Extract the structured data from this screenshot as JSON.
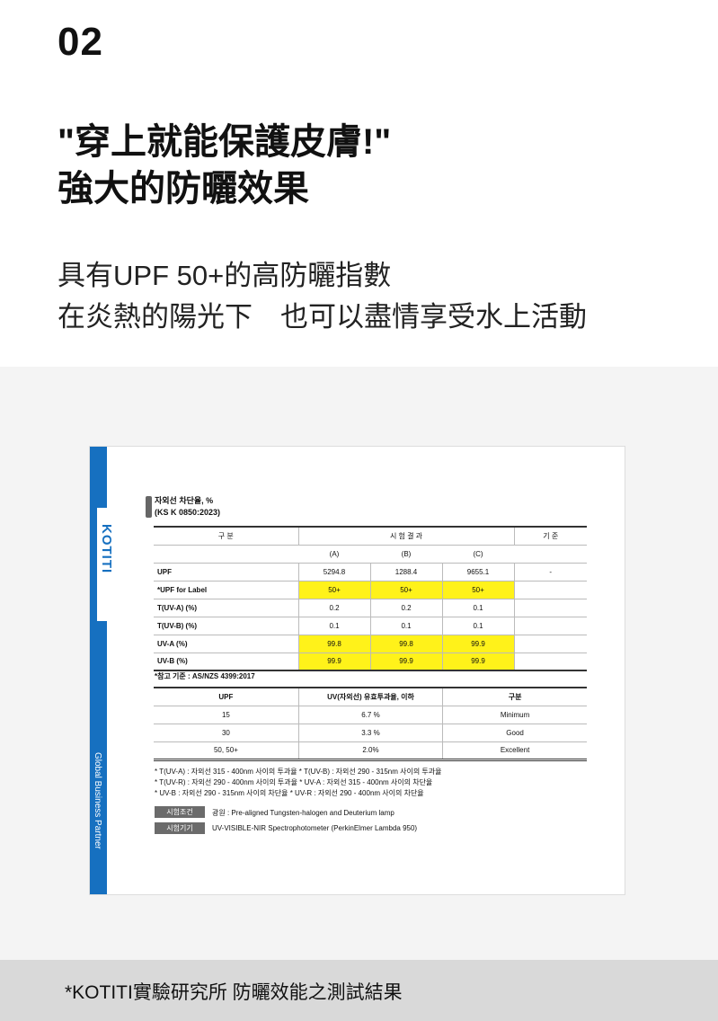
{
  "number": "02",
  "headline": [
    "\"穿上就能保護皮膚!\"",
    "強大的防曬效果"
  ],
  "subtext": [
    "具有UPF 50+的高防曬指數",
    "在炎熱的陽光下　也可以盡情享受水上活動"
  ],
  "doc": {
    "brand": "KOTITI",
    "side_text": "Global Business Partner",
    "title": [
      "자외선 차단율, %",
      "(KS K 0850:2023)"
    ],
    "t1_head": [
      "구 분",
      "시 험 결 과",
      "기 준"
    ],
    "t1_sub": [
      "(A)",
      "(B)",
      "(C)"
    ],
    "t1_rows": [
      {
        "label": "UPF",
        "a": "5294.8",
        "b": "1288.4",
        "c": "9655.1",
        "std": "-",
        "hl": false
      },
      {
        "label": "*UPF for Label",
        "a": "50+",
        "b": "50+",
        "c": "50+",
        "std": "",
        "hl": true
      },
      {
        "label": "T(UV-A) (%)",
        "a": "0.2",
        "b": "0.2",
        "c": "0.1",
        "std": "",
        "hl": false
      },
      {
        "label": "T(UV-B) (%)",
        "a": "0.1",
        "b": "0.1",
        "c": "0.1",
        "std": "",
        "hl": false
      },
      {
        "label": "UV-A (%)",
        "a": "99.8",
        "b": "99.8",
        "c": "99.9",
        "std": "",
        "hl": true
      },
      {
        "label": "UV-B (%)",
        "a": "99.9",
        "b": "99.9",
        "c": "99.9",
        "std": "",
        "hl": true
      }
    ],
    "ref": "*참고 기준 : AS/NZS 4399:2017",
    "t2_head": [
      "UPF",
      "UV(자외선) 유효투과율, 이하",
      "구분"
    ],
    "t2_rows": [
      [
        "15",
        "6.7 %",
        "Minimum"
      ],
      [
        "30",
        "3.3 %",
        "Good"
      ],
      [
        "50, 50+",
        "2.0%",
        "Excellent"
      ]
    ],
    "notes": [
      "* T(UV-A) : 자외선 315 - 400nm 사이의 투과율   * T(UV-B) : 자외선 290 - 315nm 사이의 투과율",
      "* T(UV-R) : 자외선 290 - 400nm 사이의 투과율   * UV-A : 자외선 315 - 400nm 사이의 차단율",
      "* UV-B : 자외선 290 - 315nm 사이의 차단율        * UV-R : 자외선 290 - 400nm 사이의 차단율"
    ],
    "cond_label": "시험조건",
    "cond_text": "광원 : Pre-aligned Tungsten-halogen and Deuterium lamp",
    "equip_label": "시험기기",
    "equip_text": "UV-VISIBLE-NIR Spectrophotometer (PerkinElmer Lambda 950)"
  },
  "caption": "*KOTITI實驗研究所 防曬效能之測試結果",
  "colors": {
    "brand_blue": "#1670c0",
    "highlight": "#fff21a"
  }
}
